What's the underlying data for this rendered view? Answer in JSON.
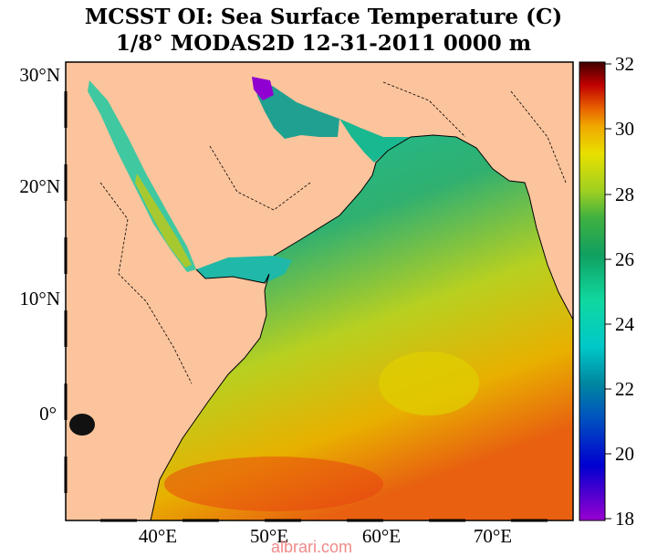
{
  "title": {
    "line1": "MCSST OI:  Sea Surface Temperature (C)",
    "line2": "1/8° MODAS2D 12-31-2011 0000 m"
  },
  "map": {
    "lat_labels": [
      "30°N",
      "20°N",
      "10°N",
      "0°"
    ],
    "lon_labels": [
      "40°E",
      "50°E",
      "60°E",
      "70°E"
    ],
    "land_color": "#fcc49c"
  },
  "colorbar": {
    "ticks": [
      "32",
      "30",
      "28",
      "26",
      "24",
      "22",
      "20",
      "18"
    ],
    "min": 18,
    "max": 32,
    "colors": [
      "#8b00b0",
      "#0000c8",
      "#0088a0",
      "#00d8d8",
      "#18b070",
      "#208a40",
      "#a8d820",
      "#e8e000",
      "#f0a000",
      "#e84000",
      "#c00000",
      "#500000"
    ]
  },
  "watermark": "albrari.com"
}
